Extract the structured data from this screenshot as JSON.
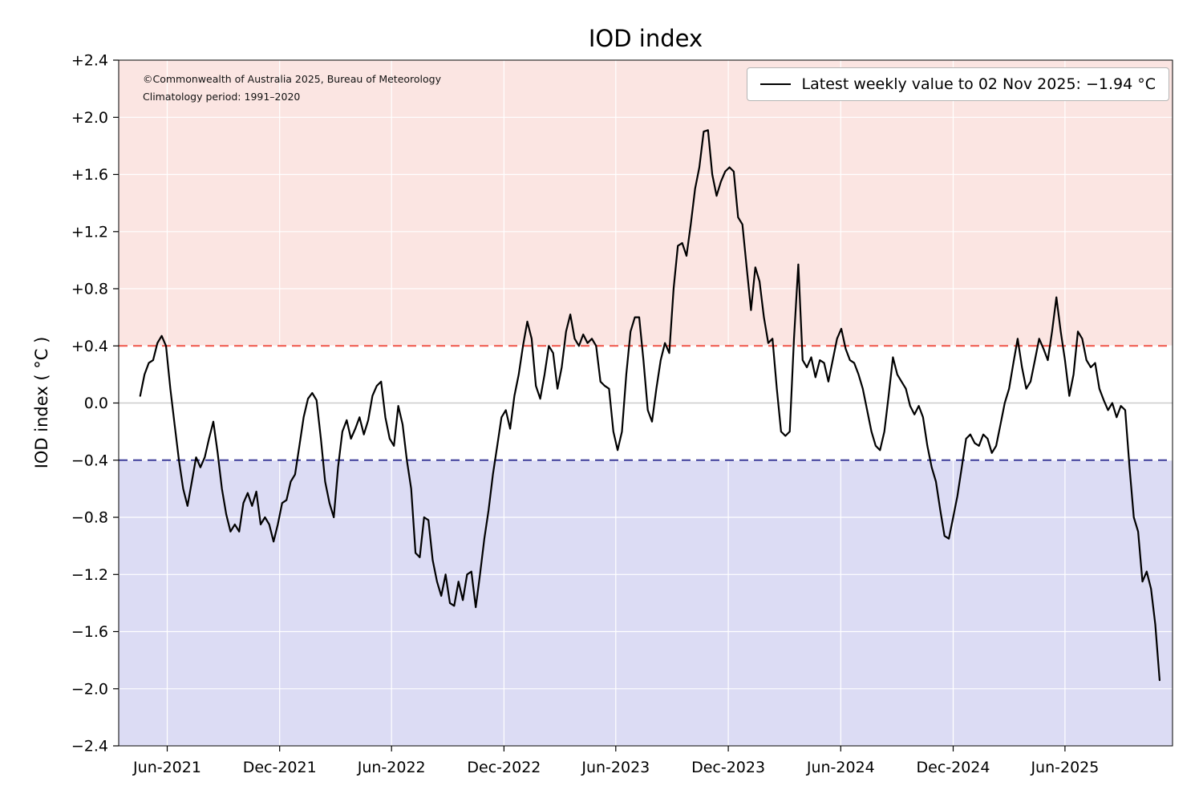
{
  "title": "IOD index",
  "annotations": {
    "copyright": "©Commonwealth of Australia 2025, Bureau of Meteorology",
    "climatology": "Climatology period: 1991–2020"
  },
  "legend": {
    "label": "Latest weekly value to 02 Nov 2025: −1.94 °C"
  },
  "chart_data": {
    "type": "line",
    "title": "IOD index",
    "xlabel": "",
    "ylabel": "IOD index ( °C )",
    "ylim": [
      -2.4,
      2.4
    ],
    "grid": "faint white gridlines over shaded bands",
    "legend_position": "upper right",
    "y_ticks": [
      [
        2.4,
        "+2.4"
      ],
      [
        2.0,
        "+2.0"
      ],
      [
        1.6,
        "+1.6"
      ],
      [
        1.2,
        "+1.2"
      ],
      [
        0.8,
        "+0.8"
      ],
      [
        0.4,
        "+0.4"
      ],
      [
        0.0,
        "0.0"
      ],
      [
        -0.4,
        "−0.4"
      ],
      [
        -0.8,
        "−0.8"
      ],
      [
        -1.2,
        "−1.2"
      ],
      [
        -1.6,
        "−1.6"
      ],
      [
        -2.0,
        "−2.0"
      ],
      [
        -2.4,
        "−2.4"
      ]
    ],
    "x_ticks": [
      [
        "2021-06-01",
        "Jun-2021"
      ],
      [
        "2021-12-01",
        "Dec-2021"
      ],
      [
        "2022-06-01",
        "Jun-2022"
      ],
      [
        "2022-12-01",
        "Dec-2022"
      ],
      [
        "2023-06-01",
        "Jun-2023"
      ],
      [
        "2023-12-01",
        "Dec-2023"
      ],
      [
        "2024-06-01",
        "Jun-2024"
      ],
      [
        "2024-12-01",
        "Dec-2024"
      ],
      [
        "2025-06-01",
        "Jun-2025"
      ]
    ],
    "x_domain": [
      "2021-03-14",
      "2025-11-23"
    ],
    "line_color": "#000000",
    "thresholds": {
      "positive": {
        "value": 0.4,
        "color": "#f0564a",
        "band_color": "#fbe5e2"
      },
      "negative": {
        "value": -0.4,
        "color": "#3d3d99",
        "band_color": "#dcdcf4"
      },
      "zero_line_color": "#cccccc"
    },
    "latest": {
      "date": "02 Nov 2025",
      "value": -1.94,
      "units": "°C"
    },
    "series": {
      "name": "IOD index weekly values",
      "start_date": "2021-04-18",
      "interval_days": 7,
      "values": [
        0.05,
        0.2,
        0.28,
        0.3,
        0.42,
        0.47,
        0.4,
        0.1,
        -0.15,
        -0.4,
        -0.6,
        -0.72,
        -0.55,
        -0.38,
        -0.45,
        -0.38,
        -0.25,
        -0.13,
        -0.35,
        -0.6,
        -0.78,
        -0.9,
        -0.85,
        -0.9,
        -0.7,
        -0.63,
        -0.72,
        -0.62,
        -0.85,
        -0.8,
        -0.85,
        -0.97,
        -0.85,
        -0.7,
        -0.68,
        -0.55,
        -0.5,
        -0.3,
        -0.1,
        0.03,
        0.07,
        0.02,
        -0.25,
        -0.55,
        -0.7,
        -0.8,
        -0.45,
        -0.2,
        -0.12,
        -0.25,
        -0.18,
        -0.1,
        -0.22,
        -0.12,
        0.05,
        0.12,
        0.15,
        -0.1,
        -0.25,
        -0.3,
        -0.02,
        -0.15,
        -0.4,
        -0.6,
        -1.05,
        -1.08,
        -0.8,
        -0.82,
        -1.1,
        -1.25,
        -1.35,
        -1.2,
        -1.4,
        -1.42,
        -1.25,
        -1.38,
        -1.2,
        -1.18,
        -1.43,
        -1.2,
        -0.95,
        -0.75,
        -0.5,
        -0.3,
        -0.1,
        -0.05,
        -0.18,
        0.05,
        0.2,
        0.4,
        0.57,
        0.45,
        0.12,
        0.03,
        0.2,
        0.4,
        0.35,
        0.1,
        0.25,
        0.5,
        0.62,
        0.45,
        0.4,
        0.48,
        0.42,
        0.45,
        0.4,
        0.15,
        0.12,
        0.1,
        -0.2,
        -0.33,
        -0.2,
        0.2,
        0.5,
        0.6,
        0.6,
        0.3,
        -0.05,
        -0.13,
        0.1,
        0.3,
        0.42,
        0.35,
        0.8,
        1.1,
        1.12,
        1.03,
        1.25,
        1.5,
        1.65,
        1.9,
        1.91,
        1.6,
        1.45,
        1.55,
        1.62,
        1.65,
        1.62,
        1.3,
        1.25,
        0.95,
        0.65,
        0.95,
        0.85,
        0.6,
        0.42,
        0.45,
        0.1,
        -0.2,
        -0.23,
        -0.2,
        0.45,
        0.97,
        0.3,
        0.25,
        0.32,
        0.18,
        0.3,
        0.28,
        0.15,
        0.3,
        0.45,
        0.52,
        0.38,
        0.3,
        0.28,
        0.2,
        0.1,
        -0.05,
        -0.2,
        -0.3,
        -0.33,
        -0.2,
        0.05,
        0.32,
        0.2,
        0.15,
        0.1,
        -0.02,
        -0.08,
        -0.02,
        -0.1,
        -0.3,
        -0.45,
        -0.55,
        -0.75,
        -0.93,
        -0.95,
        -0.8,
        -0.65,
        -0.45,
        -0.25,
        -0.22,
        -0.28,
        -0.3,
        -0.22,
        -0.25,
        -0.35,
        -0.3,
        -0.15,
        0.0,
        0.1,
        0.28,
        0.45,
        0.25,
        0.1,
        0.15,
        0.3,
        0.45,
        0.38,
        0.3,
        0.5,
        0.74,
        0.5,
        0.3,
        0.05,
        0.2,
        0.5,
        0.45,
        0.3,
        0.25,
        0.28,
        0.1,
        0.02,
        -0.05,
        0.0,
        -0.1,
        -0.02,
        -0.05,
        -0.45,
        -0.8,
        -0.9,
        -1.25,
        -1.18,
        -1.3,
        -1.55,
        -1.94
      ]
    }
  }
}
